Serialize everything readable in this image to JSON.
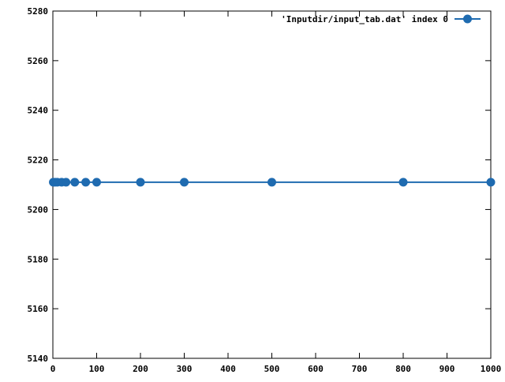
{
  "chart_data": {
    "type": "line",
    "x": [
      1,
      5,
      10,
      20,
      30,
      50,
      75,
      100,
      200,
      300,
      500,
      800,
      1000
    ],
    "series": [
      {
        "name": "'Inputdir/input_tab.dat' index 0",
        "values": [
          5211,
          5211,
          5211,
          5211,
          5211,
          5211,
          5211,
          5211,
          5211,
          5211,
          5211,
          5211,
          5211
        ]
      }
    ],
    "xlim": [
      0,
      1000
    ],
    "ylim": [
      5140,
      5280
    ],
    "xticks": [
      0,
      100,
      200,
      300,
      400,
      500,
      600,
      700,
      800,
      900,
      1000
    ],
    "yticks": [
      5140,
      5160,
      5180,
      5200,
      5220,
      5240,
      5260,
      5280
    ],
    "title": "",
    "xlabel": "",
    "ylabel": "",
    "grid": false,
    "legend_position": "top-right",
    "series_color": "#1f6bb0",
    "marker": "filled-circle"
  }
}
